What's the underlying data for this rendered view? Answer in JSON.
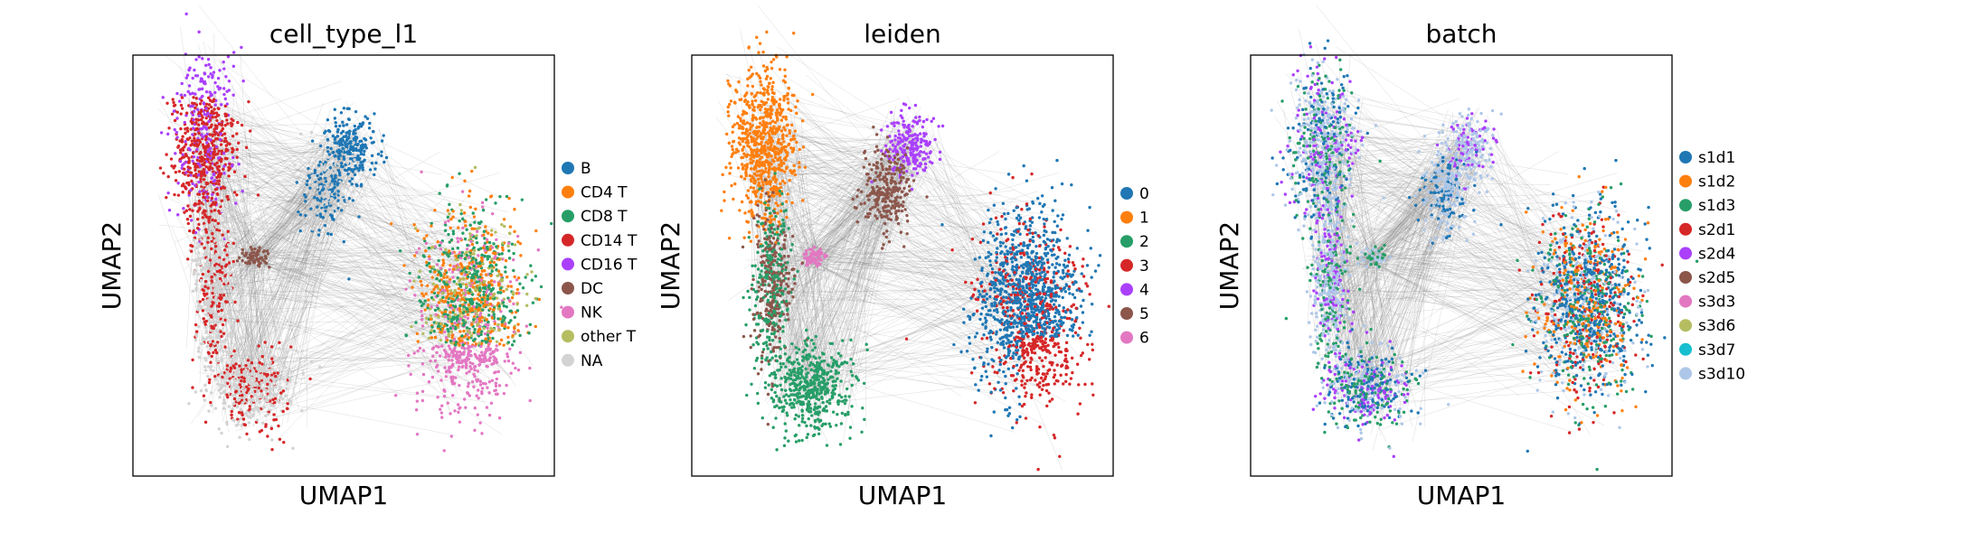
{
  "chart_data": [
    {
      "type": "scatter",
      "title": "cell_type_l1",
      "xlabel": "UMAP1",
      "ylabel": "UMAP2",
      "xticks": [],
      "yticks": [],
      "grid": false,
      "legend_placement": "right, outside",
      "legend": [
        {
          "label": "B",
          "color": "#1f77b4"
        },
        {
          "label": "CD4 T",
          "color": "#ff7f0e"
        },
        {
          "label": "CD8 T",
          "color": "#279e68"
        },
        {
          "label": "CD14 T",
          "color": "#d62728"
        },
        {
          "label": "CD16 T",
          "color": "#aa40fc"
        },
        {
          "label": "DC",
          "color": "#8c564b"
        },
        {
          "label": "NK",
          "color": "#e377c2"
        },
        {
          "label": "other T",
          "color": "#b5bd61"
        },
        {
          "label": "NA",
          "color": "#d3d3d3"
        }
      ]
    },
    {
      "type": "scatter",
      "title": "leiden",
      "xlabel": "UMAP1",
      "ylabel": "UMAP2",
      "xticks": [],
      "yticks": [],
      "grid": false,
      "legend_placement": "right, outside",
      "legend": [
        {
          "label": "0",
          "color": "#1f77b4"
        },
        {
          "label": "1",
          "color": "#ff7f0e"
        },
        {
          "label": "2",
          "color": "#279e68"
        },
        {
          "label": "3",
          "color": "#d62728"
        },
        {
          "label": "4",
          "color": "#aa40fc"
        },
        {
          "label": "5",
          "color": "#8c564b"
        },
        {
          "label": "6",
          "color": "#e377c2"
        }
      ]
    },
    {
      "type": "scatter",
      "title": "batch",
      "xlabel": "UMAP1",
      "ylabel": "UMAP2",
      "xticks": [],
      "yticks": [],
      "grid": false,
      "legend_placement": "right, outside",
      "legend": [
        {
          "label": "s1d1",
          "color": "#1f77b4"
        },
        {
          "label": "s1d2",
          "color": "#ff7f0e"
        },
        {
          "label": "s1d3",
          "color": "#279e68"
        },
        {
          "label": "s2d1",
          "color": "#d62728"
        },
        {
          "label": "s2d4",
          "color": "#aa40fc"
        },
        {
          "label": "s2d5",
          "color": "#8c564b"
        },
        {
          "label": "s3d3",
          "color": "#e377c2"
        },
        {
          "label": "s3d6",
          "color": "#b5bd61"
        },
        {
          "label": "s3d7",
          "color": "#17becf"
        },
        {
          "label": "s3d10",
          "color": "#aec7e8"
        }
      ]
    }
  ],
  "edge_color": "#808080"
}
